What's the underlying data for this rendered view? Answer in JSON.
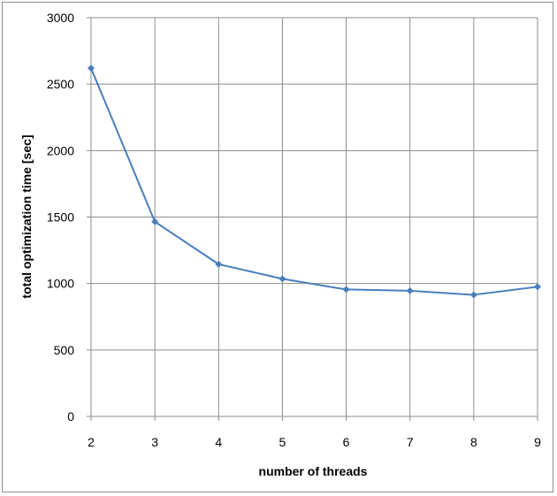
{
  "chart_data": {
    "type": "line",
    "title": "",
    "xlabel": "number of threads",
    "ylabel": "total optimization time [sec]",
    "x": [
      2,
      3,
      4,
      5,
      6,
      7,
      8,
      9
    ],
    "series": [
      {
        "values": [
          2620,
          1465,
          1145,
          1035,
          955,
          945,
          915,
          975
        ]
      }
    ],
    "xlim": [
      2,
      9
    ],
    "ylim": [
      0,
      3000
    ],
    "y_ticks": [
      0,
      500,
      1000,
      1500,
      2000,
      2500,
      3000
    ],
    "x_ticks": [
      2,
      3,
      4,
      5,
      6,
      7,
      8,
      9
    ],
    "grid": true,
    "legend": "none",
    "colors": {
      "line": "#4a7ebb",
      "grid": "#8c8c8c",
      "border": "#8c8c8c"
    }
  }
}
